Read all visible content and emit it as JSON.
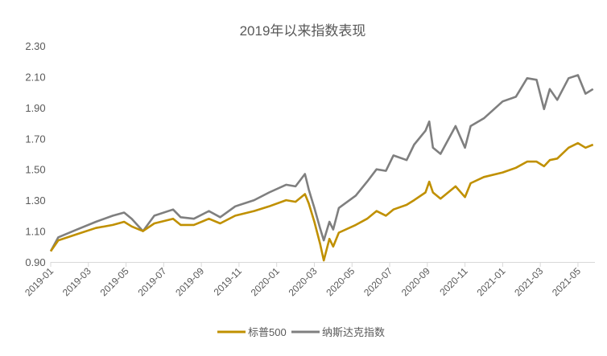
{
  "chart_data": {
    "type": "line",
    "title": "2019年以来指数表现",
    "xlabel": "",
    "ylabel": "",
    "x_unit": "months since 2019-01",
    "xlim": [
      0,
      28.9
    ],
    "ylim": [
      0.9,
      2.3
    ],
    "yticks": [
      0.9,
      1.1,
      1.3,
      1.5,
      1.7,
      1.9,
      2.1,
      2.3
    ],
    "ytick_labels": [
      "0.90",
      "1.10",
      "1.30",
      "1.50",
      "1.70",
      "1.90",
      "2.10",
      "2.30"
    ],
    "xticks": [
      0,
      2,
      4,
      6,
      8,
      10,
      12,
      14,
      16,
      18,
      20,
      22,
      24,
      26,
      28
    ],
    "xtick_labels": [
      "2019-01",
      "2019-03",
      "2019-05",
      "2019-07",
      "2019-09",
      "2019-11",
      "2020-01",
      "2020-03",
      "2020-05",
      "2020-07",
      "2020-09",
      "2020-11",
      "2021-01",
      "2021-03",
      "2021-05"
    ],
    "grid": false,
    "legend_position": "bottom",
    "x": [
      0,
      0.4,
      1.4,
      2.4,
      3.3,
      3.9,
      4.3,
      4.9,
      5.5,
      6.5,
      6.9,
      7.6,
      8.4,
      9.0,
      9.8,
      10.8,
      11.6,
      12.5,
      13,
      13.5,
      13.7,
      14,
      14.3,
      14.5,
      14.8,
      15,
      15.3,
      16.2,
      16.8,
      17.3,
      17.8,
      18.2,
      18.9,
      19.3,
      19.9,
      20.1,
      20.3,
      20.7,
      21.5,
      22,
      22.3,
      23,
      24,
      24.7,
      25.3,
      25.8,
      26.2,
      26.5,
      26.9,
      27.5,
      28,
      28.4,
      28.8
    ],
    "series": [
      {
        "name": "标普500",
        "color": "#C09000",
        "values": [
          0.97,
          1.04,
          1.08,
          1.12,
          1.14,
          1.16,
          1.13,
          1.1,
          1.15,
          1.18,
          1.14,
          1.14,
          1.18,
          1.15,
          1.2,
          1.23,
          1.26,
          1.3,
          1.29,
          1.34,
          1.28,
          1.16,
          1.02,
          0.91,
          1.05,
          1.0,
          1.09,
          1.14,
          1.18,
          1.23,
          1.2,
          1.24,
          1.27,
          1.3,
          1.35,
          1.42,
          1.35,
          1.31,
          1.39,
          1.32,
          1.41,
          1.45,
          1.48,
          1.51,
          1.55,
          1.55,
          1.52,
          1.56,
          1.57,
          1.64,
          1.67,
          1.64,
          1.66
        ]
      },
      {
        "name": "纳斯达克指数",
        "color": "#7F7F7F",
        "values": [
          0.97,
          1.06,
          1.11,
          1.16,
          1.2,
          1.22,
          1.18,
          1.1,
          1.2,
          1.24,
          1.19,
          1.18,
          1.23,
          1.19,
          1.26,
          1.3,
          1.35,
          1.4,
          1.39,
          1.47,
          1.37,
          1.25,
          1.12,
          1.04,
          1.16,
          1.11,
          1.25,
          1.33,
          1.42,
          1.5,
          1.49,
          1.59,
          1.56,
          1.66,
          1.75,
          1.81,
          1.64,
          1.6,
          1.78,
          1.64,
          1.78,
          1.83,
          1.94,
          1.97,
          2.09,
          2.08,
          1.89,
          2.02,
          1.95,
          2.09,
          2.11,
          1.99,
          2.02
        ]
      }
    ]
  }
}
